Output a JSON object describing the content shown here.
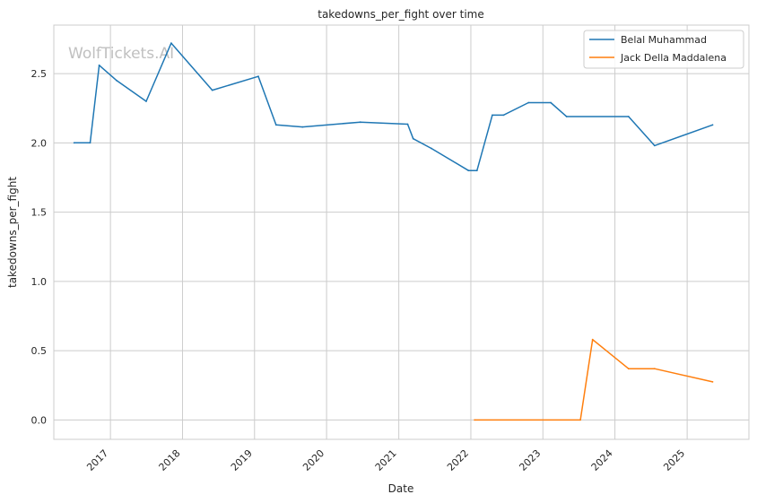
{
  "chart_data": {
    "type": "line",
    "title": "takedowns_per_fight over time",
    "xlabel": "Date",
    "ylabel": "takedowns_per_fight",
    "watermark": "WolfTickets.AI",
    "x_type": "date",
    "xlim": [
      "2016-03-20",
      "2025-11-10"
    ],
    "ylim": [
      -0.14,
      2.85
    ],
    "x_ticks": [
      "2017",
      "2018",
      "2019",
      "2020",
      "2021",
      "2022",
      "2023",
      "2024",
      "2025"
    ],
    "y_ticks": [
      "0.0",
      "0.5",
      "1.0",
      "1.5",
      "2.0",
      "2.5"
    ],
    "grid": true,
    "legend_position": "top-right",
    "series": [
      {
        "name": "Belal Muhammad",
        "color": "#1f77b4",
        "points": [
          [
            "2016-07-01",
            2.0
          ],
          [
            "2016-09-20",
            2.0
          ],
          [
            "2016-11-05",
            2.56
          ],
          [
            "2017-02-01",
            2.45
          ],
          [
            "2017-07-01",
            2.3
          ],
          [
            "2017-11-05",
            2.72
          ],
          [
            "2018-06-01",
            2.38
          ],
          [
            "2019-01-20",
            2.48
          ],
          [
            "2019-04-20",
            2.13
          ],
          [
            "2019-09-01",
            2.115
          ],
          [
            "2020-06-20",
            2.15
          ],
          [
            "2021-02-15",
            2.135
          ],
          [
            "2021-03-15",
            2.03
          ],
          [
            "2021-06-15",
            1.96
          ],
          [
            "2021-12-20",
            1.8
          ],
          [
            "2022-02-01",
            1.8
          ],
          [
            "2022-04-20",
            2.2
          ],
          [
            "2022-06-15",
            2.2
          ],
          [
            "2022-10-20",
            2.29
          ],
          [
            "2023-02-10",
            2.29
          ],
          [
            "2023-05-01",
            2.19
          ],
          [
            "2024-03-10",
            2.19
          ],
          [
            "2024-07-20",
            1.98
          ],
          [
            "2025-05-10",
            2.13
          ]
        ]
      },
      {
        "name": "Jack Della Maddalena",
        "color": "#ff7f0e",
        "points": [
          [
            "2022-01-20",
            0.0
          ],
          [
            "2023-07-10",
            0.0
          ],
          [
            "2023-09-10",
            0.58
          ],
          [
            "2024-03-10",
            0.37
          ],
          [
            "2024-07-20",
            0.37
          ],
          [
            "2025-05-10",
            0.275
          ]
        ]
      }
    ]
  }
}
